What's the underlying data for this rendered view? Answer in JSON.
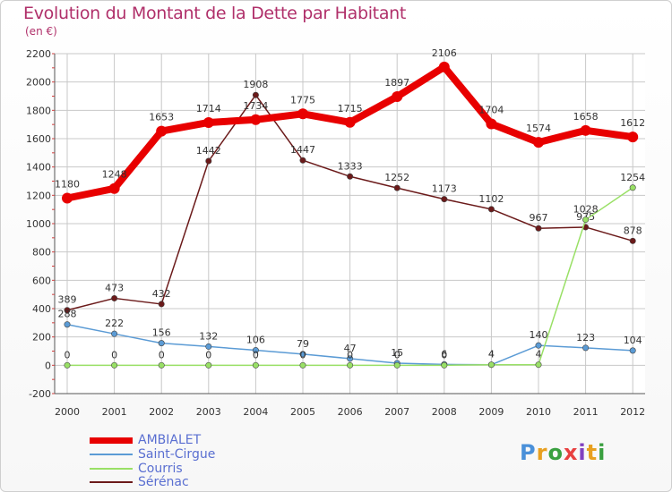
{
  "title": "Evolution du Montant de la Dette par Habitant",
  "subtitle": "(en €)",
  "logo_text": "Proxiti",
  "chart_data": {
    "type": "line",
    "title": "Evolution du Montant de la Dette par Habitant",
    "subtitle": "(en €)",
    "categories": [
      "2000",
      "2001",
      "2002",
      "2003",
      "2004",
      "2005",
      "2006",
      "2007",
      "2008",
      "2009",
      "2010",
      "2011",
      "2012"
    ],
    "ylim": [
      -200,
      2200
    ],
    "yticks": [
      "2200",
      "2000",
      "1800",
      "1600",
      "1400",
      "1200",
      "1000",
      "800",
      "600",
      "400",
      "200",
      "0",
      "-200"
    ],
    "grid": true,
    "legend_position": "bottom-left",
    "series": [
      {
        "name": "AMBIALET",
        "color": "#e80000",
        "values": [
          1180,
          1248,
          1653,
          1714,
          1734,
          1775,
          1715,
          1897,
          2106,
          1704,
          1574,
          1658,
          1612
        ],
        "labels": [
          "1180",
          "1248",
          "1653",
          "1714",
          "1734",
          "1775",
          "1715",
          "1897",
          "2106",
          "1704",
          "1574",
          "1658",
          "1612"
        ]
      },
      {
        "name": "Saint-Cirgue",
        "color": "#5b9bd5",
        "values": [
          288,
          222,
          156,
          132,
          106,
          79,
          47,
          15,
          6,
          4,
          140,
          123,
          104
        ],
        "labels": [
          "288",
          "222",
          "156",
          "132",
          "106",
          "79",
          "47",
          "15",
          "6",
          "4",
          "140",
          "123",
          "104"
        ]
      },
      {
        "name": "Courris",
        "color": "#99e066",
        "values": [
          0,
          0,
          0,
          0,
          0,
          0,
          0,
          0,
          0,
          4,
          4,
          1028,
          1254
        ],
        "labels": [
          "0",
          "0",
          "0",
          "0",
          "0",
          "0",
          "0",
          "0",
          "0",
          "4",
          "4",
          "1028",
          "1254"
        ]
      },
      {
        "name": "Sérénac",
        "color": "#6b1a1a",
        "values": [
          389,
          473,
          432,
          1442,
          1908,
          1447,
          1333,
          1252,
          1173,
          1102,
          967,
          975,
          878
        ],
        "labels": [
          "389",
          "473",
          "432",
          "1442",
          "1908",
          "1447",
          "1333",
          "1252",
          "1173",
          "1102",
          "967",
          "975",
          "878"
        ]
      }
    ]
  },
  "legend": [
    {
      "label": "AMBIALET",
      "color": "#e80000"
    },
    {
      "label": "Saint-Cirgue",
      "color": "#5b9bd5"
    },
    {
      "label": "Courris",
      "color": "#99e066"
    },
    {
      "label": "Sérénac",
      "color": "#6b1a1a"
    }
  ]
}
